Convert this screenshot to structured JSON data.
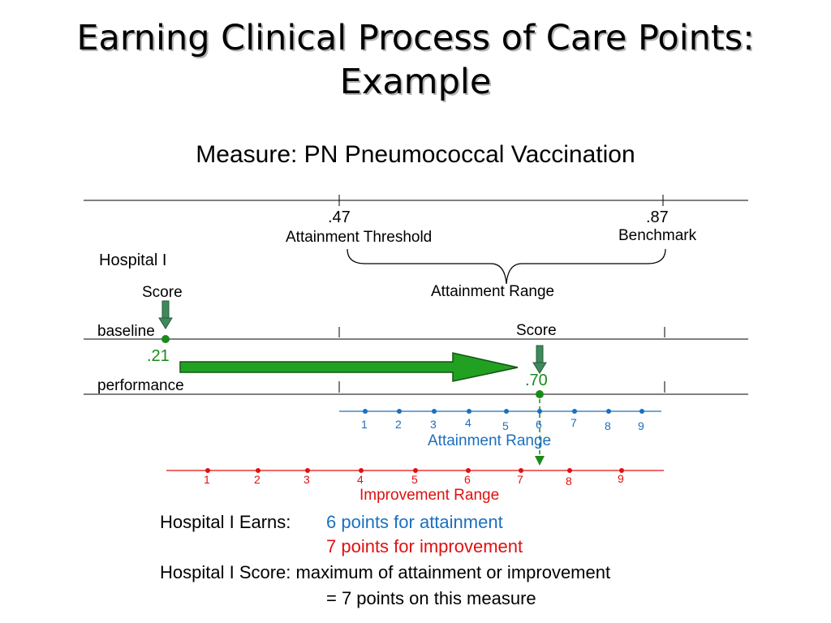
{
  "title_line1": "Earning Clinical Process of Care Points:",
  "title_line2": "Example",
  "measure": "Measure: PN Pneumococcal Vaccination",
  "threshold": {
    "value": ".47",
    "label": "Attainment Threshold"
  },
  "benchmark": {
    "value": ".87",
    "label": "Benchmark"
  },
  "hospital_label": "Hospital I",
  "baseline_score_label": "Score",
  "attainment_range_top_label": "Attainment Range",
  "performance_score_label": "Score",
  "baseline_label": "baseline",
  "performance_label": "performance",
  "baseline_value": ".21",
  "performance_value": ".70",
  "attainment_scale": {
    "label": "Attainment Range",
    "ticks": [
      "1",
      "2",
      "3",
      "4",
      "5",
      "6",
      "7",
      "8",
      "9"
    ],
    "color": "#1c6fbf"
  },
  "improvement_scale": {
    "label": "Improvement Range",
    "ticks": [
      "1",
      "2",
      "3",
      "4",
      "5",
      "6",
      "7",
      "8",
      "9"
    ],
    "color": "#e01010"
  },
  "earns_label": "Hospital I Earns:",
  "attainment_points": "6 points for attainment",
  "improvement_points": "7 points for improvement",
  "score_label": "Hospital I Score: maximum of attainment or improvement",
  "score_result": "= 7 points on this measure",
  "colors": {
    "green": "#1a8a1a",
    "arrow_fill": "#22a022",
    "blue": "#1c6fbf",
    "red": "#e01010"
  }
}
